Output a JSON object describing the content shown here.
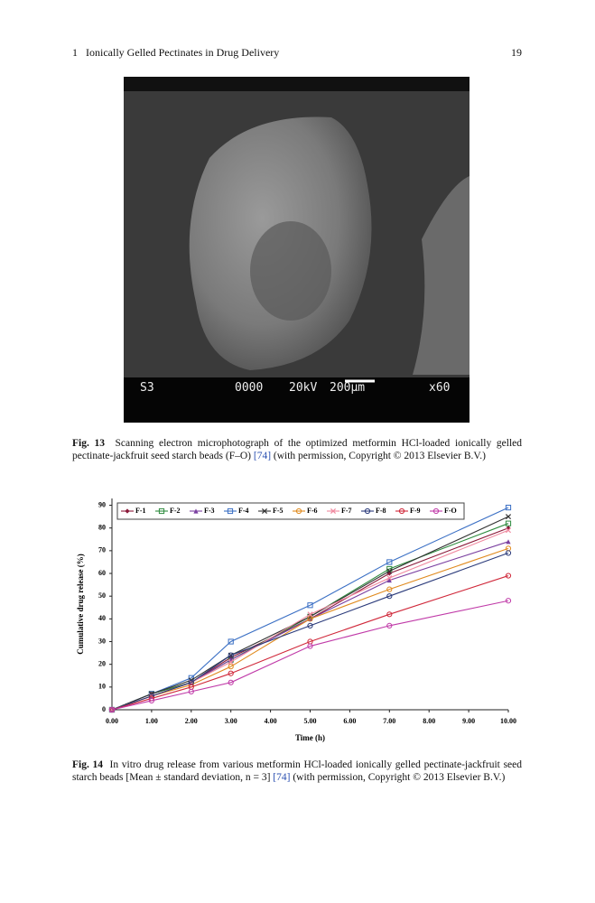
{
  "header": {
    "section": "1",
    "title": "Ionically Gelled Pectinates in Drug Delivery",
    "page": "19"
  },
  "figure13": {
    "image_labels": [
      "S3",
      "0000",
      "20kV",
      "200µm",
      "x60"
    ],
    "caption": {
      "label": "Fig. 13",
      "text": "Scanning electron microphotograph of the optimized metformin HCl-loaded ionically gelled pectinate-jackfruit seed starch beads (F–O)",
      "ref": "[74]",
      "note": "(with permission, Copyright © 2013 Elsevier B.V.)"
    }
  },
  "chart_data": {
    "type": "line",
    "x_label": "Time (h)",
    "y_label": "Cumulative drug release (%)",
    "x": [
      0,
      1,
      2,
      3,
      5,
      7,
      10
    ],
    "xlim": [
      0,
      10
    ],
    "xticks": [
      {
        "value": 0,
        "label": "0.00"
      },
      {
        "value": 1,
        "label": "1.00"
      },
      {
        "value": 2,
        "label": "2.00"
      },
      {
        "value": 3,
        "label": "3.00"
      },
      {
        "value": 4,
        "label": "4.00"
      },
      {
        "value": 5,
        "label": "5.00"
      },
      {
        "value": 6,
        "label": "6.00"
      },
      {
        "value": 7,
        "label": "7.00"
      },
      {
        "value": 8,
        "label": "8.00"
      },
      {
        "value": 9,
        "label": "9.00"
      },
      {
        "value": 10,
        "label": "10.00"
      }
    ],
    "ylim": [
      0,
      93
    ],
    "yticks": [
      0,
      10,
      20,
      30,
      40,
      50,
      60,
      70,
      80,
      90
    ],
    "grid": false,
    "legend": "top",
    "series": [
      {
        "name": "F-1",
        "color": "#8b1a3a",
        "marker": "diamond",
        "values": [
          0,
          7,
          12,
          23,
          40,
          60,
          80
        ]
      },
      {
        "name": "F-2",
        "color": "#2e8b3e",
        "marker": "square",
        "values": [
          0,
          7,
          12,
          22,
          41,
          62,
          82
        ]
      },
      {
        "name": "F-3",
        "color": "#7a3fa0",
        "marker": "triangle",
        "values": [
          0,
          6,
          12,
          22,
          40,
          57,
          74
        ]
      },
      {
        "name": "F-4",
        "color": "#3a6fc4",
        "marker": "square",
        "values": [
          0,
          7,
          14,
          30,
          46,
          65,
          89
        ]
      },
      {
        "name": "F-5",
        "color": "#333333",
        "marker": "cross",
        "values": [
          0,
          7,
          13,
          24,
          41,
          61,
          85
        ]
      },
      {
        "name": "F-6",
        "color": "#e08a1e",
        "marker": "circle",
        "values": [
          0,
          6,
          11,
          19,
          40,
          53,
          71
        ]
      },
      {
        "name": "F-7",
        "color": "#f08aa0",
        "marker": "cross",
        "values": [
          0,
          6,
          12,
          21,
          42,
          58,
          79
        ]
      },
      {
        "name": "F-8",
        "color": "#2a3a7a",
        "marker": "circle",
        "values": [
          0,
          6,
          12,
          24,
          37,
          50,
          69
        ]
      },
      {
        "name": "F-9",
        "color": "#d0283a",
        "marker": "circle",
        "values": [
          0,
          5,
          10,
          16,
          30,
          42,
          59
        ]
      },
      {
        "name": "F-O",
        "color": "#c03aa8",
        "marker": "circle",
        "values": [
          0,
          4,
          8,
          12,
          28,
          37,
          48
        ]
      }
    ]
  },
  "figure14_caption": {
    "label": "Fig. 14",
    "text": "In vitro drug release from various metformin HCl-loaded ionically gelled pectinate-jackfruit seed starch beads [Mean ± standard deviation, n = 3]",
    "ref": "[74]",
    "note": "(with permission, Copyright © 2013 Elsevier B.V.)"
  }
}
